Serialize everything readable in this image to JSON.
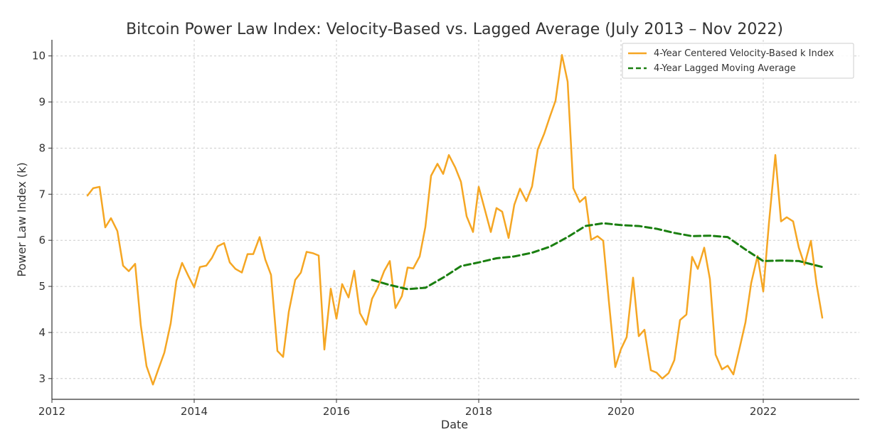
{
  "chart_data": {
    "type": "line",
    "title": "Bitcoin Power Law Index: Velocity-Based vs. Lagged Average (July 2013 – Nov 2022)",
    "xlabel": "Date",
    "ylabel": "Power Law Index (k)",
    "xlim": [
      2012.0,
      2023.35
    ],
    "ylim": [
      2.55,
      10.35
    ],
    "xticks": [
      2012,
      2014,
      2016,
      2018,
      2020,
      2022
    ],
    "xtick_labels": [
      "2012",
      "2014",
      "2016",
      "2018",
      "2020",
      "2022"
    ],
    "yticks": [
      3,
      4,
      5,
      6,
      7,
      8,
      9,
      10
    ],
    "ytick_labels": [
      "3",
      "4",
      "5",
      "6",
      "7",
      "8",
      "9",
      "10"
    ],
    "grid": true,
    "legend_position": "top-right",
    "series": [
      {
        "name": "4-Year Centered Velocity-Based k Index",
        "color": "#f5a623",
        "style": "solid",
        "x": [
          2012.5,
          2012.58,
          2012.67,
          2012.75,
          2012.83,
          2012.92,
          2013.0,
          2013.08,
          2013.17,
          2013.25,
          2013.33,
          2013.42,
          2013.5,
          2013.58,
          2013.67,
          2013.75,
          2013.83,
          2013.92,
          2014.0,
          2014.08,
          2014.17,
          2014.25,
          2014.33,
          2014.42,
          2014.5,
          2014.58,
          2014.67,
          2014.75,
          2014.83,
          2014.92,
          2015.0,
          2015.08,
          2015.17,
          2015.25,
          2015.33,
          2015.42,
          2015.5,
          2015.58,
          2015.67,
          2015.75,
          2015.83,
          2015.92,
          2016.0,
          2016.08,
          2016.17,
          2016.25,
          2016.33,
          2016.42,
          2016.5,
          2016.58,
          2016.67,
          2016.75,
          2016.83,
          2016.92,
          2017.0,
          2017.08,
          2017.17,
          2017.25,
          2017.33,
          2017.42,
          2017.5,
          2017.58,
          2017.67,
          2017.75,
          2017.83,
          2017.92,
          2018.0,
          2018.08,
          2018.17,
          2018.25,
          2018.33,
          2018.42,
          2018.5,
          2018.58,
          2018.67,
          2018.75,
          2018.83,
          2018.92,
          2019.0,
          2019.08,
          2019.17,
          2019.25,
          2019.33,
          2019.42,
          2019.5,
          2019.58,
          2019.67,
          2019.75,
          2019.83,
          2019.92,
          2020.0,
          2020.08,
          2020.17,
          2020.25,
          2020.33,
          2020.42,
          2020.5,
          2020.58,
          2020.67,
          2020.75,
          2020.83,
          2020.92,
          2021.0,
          2021.08,
          2021.17,
          2021.25,
          2021.33,
          2021.42,
          2021.5,
          2021.58,
          2021.67,
          2021.75,
          2021.83,
          2021.92,
          2022.0,
          2022.08,
          2022.17,
          2022.25,
          2022.33,
          2022.42,
          2022.5,
          2022.58,
          2022.67,
          2022.75,
          2022.83
        ],
        "values": [
          6.97,
          7.13,
          7.16,
          6.28,
          6.48,
          6.2,
          5.45,
          5.33,
          5.49,
          4.15,
          3.27,
          2.87,
          3.22,
          3.56,
          4.2,
          5.12,
          5.51,
          5.22,
          4.98,
          5.42,
          5.45,
          5.62,
          5.87,
          5.94,
          5.52,
          5.38,
          5.3,
          5.7,
          5.7,
          6.07,
          5.58,
          5.25,
          3.6,
          3.47,
          4.45,
          5.14,
          5.3,
          5.75,
          5.72,
          5.67,
          3.63,
          4.95,
          4.3,
          5.05,
          4.76,
          5.34,
          4.42,
          4.17,
          4.73,
          4.97,
          5.33,
          5.55,
          4.53,
          4.79,
          5.41,
          5.39,
          5.65,
          6.29,
          7.4,
          7.66,
          7.44,
          7.85,
          7.58,
          7.27,
          6.52,
          6.18,
          7.16,
          6.7,
          6.18,
          6.7,
          6.62,
          6.05,
          6.77,
          7.12,
          6.85,
          7.17,
          7.97,
          8.31,
          8.68,
          9.03,
          10.02,
          9.44,
          7.13,
          6.83,
          6.94,
          6.01,
          6.09,
          5.99,
          4.67,
          3.25,
          3.64,
          3.9,
          5.19,
          3.92,
          4.06,
          3.18,
          3.13,
          3.0,
          3.12,
          3.4,
          4.27,
          4.39,
          5.64,
          5.38,
          5.84,
          5.16,
          3.52,
          3.2,
          3.28,
          3.09,
          3.68,
          4.22,
          5.07,
          5.66,
          4.89,
          6.37,
          7.85,
          6.41,
          6.5,
          6.41,
          5.84,
          5.47,
          5.99,
          5.04,
          4.32
        ]
      },
      {
        "name": "4-Year Lagged Moving Average",
        "color": "#1a7f10",
        "style": "dashed",
        "x": [
          2016.5,
          2016.75,
          2017.0,
          2017.25,
          2017.5,
          2017.75,
          2018.0,
          2018.25,
          2018.5,
          2018.75,
          2019.0,
          2019.25,
          2019.5,
          2019.75,
          2020.0,
          2020.25,
          2020.5,
          2020.75,
          2021.0,
          2021.25,
          2021.5,
          2021.75,
          2022.0,
          2022.25,
          2022.5,
          2022.83
        ],
        "values": [
          5.14,
          5.03,
          4.94,
          4.97,
          5.19,
          5.44,
          5.52,
          5.61,
          5.65,
          5.73,
          5.86,
          6.07,
          6.31,
          6.37,
          6.33,
          6.31,
          6.25,
          6.16,
          6.09,
          6.1,
          6.07,
          5.8,
          5.55,
          5.56,
          5.55,
          5.42
        ]
      }
    ]
  }
}
